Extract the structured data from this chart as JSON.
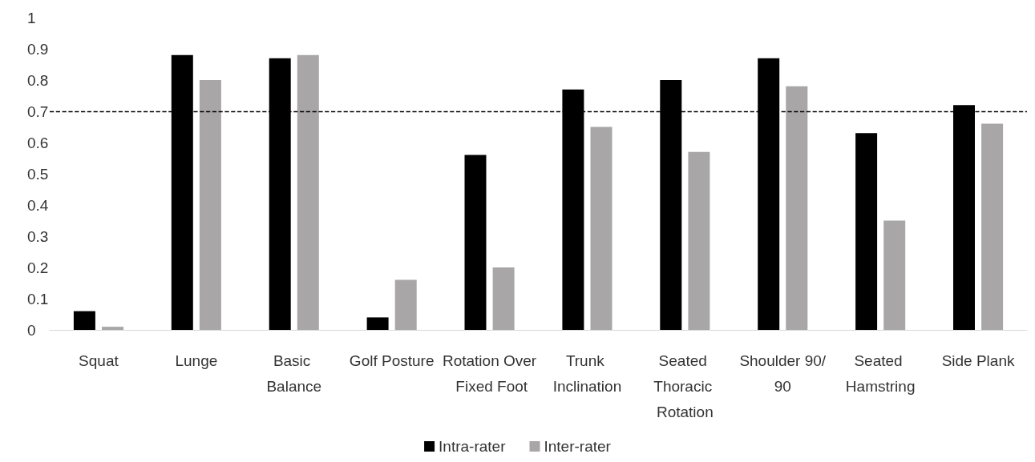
{
  "chart_data": {
    "type": "bar",
    "categories": [
      "Squat",
      "Lunge",
      "Basic Balance",
      "Golf Posture",
      "Rotation Over Fixed Foot",
      "Trunk Inclination",
      "Seated Thoracic Rotation",
      "Shoulder 90/90",
      "Seated Hamstring",
      "Side Plank"
    ],
    "series": [
      {
        "name": "Intra-rater",
        "color": "#000000",
        "values": [
          0.06,
          0.88,
          0.87,
          0.04,
          0.56,
          0.77,
          0.8,
          0.87,
          0.63,
          0.72
        ]
      },
      {
        "name": "Inter-rater",
        "color": "#a8a6a6",
        "values": [
          0.01,
          0.8,
          0.88,
          0.16,
          0.2,
          0.65,
          0.57,
          0.78,
          0.35,
          0.66
        ]
      }
    ],
    "ylim": [
      0,
      1
    ],
    "yticks": [
      0,
      0.1,
      0.2,
      0.3,
      0.4,
      0.5,
      0.6,
      0.7,
      0.8,
      0.9,
      1
    ],
    "ref_lines": [
      {
        "axis": "y",
        "value": 0.7,
        "color": "#000000",
        "line_style": "dashed"
      }
    ],
    "grid": false,
    "legend": "bottom"
  }
}
